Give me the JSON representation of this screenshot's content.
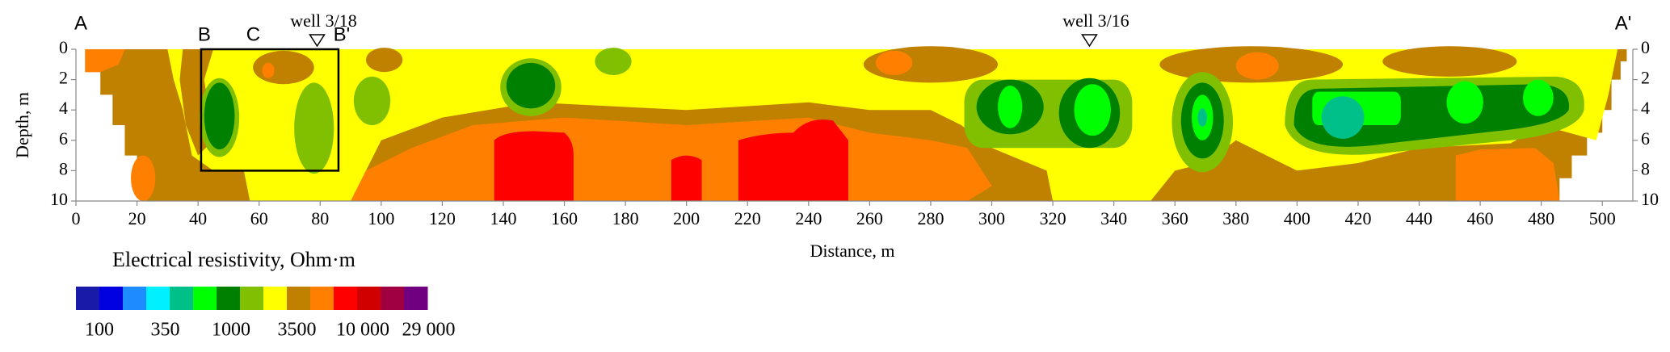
{
  "chart_data": {
    "type": "section",
    "xlabel": "Distance, m",
    "ylabel": "Depth, m",
    "xlim": [
      0,
      510
    ],
    "ylim": [
      0,
      10
    ],
    "xticks": [
      0,
      20,
      40,
      60,
      80,
      100,
      120,
      140,
      160,
      180,
      200,
      220,
      240,
      260,
      280,
      300,
      320,
      340,
      360,
      380,
      400,
      420,
      440,
      460,
      480,
      500
    ],
    "yticks": [
      0,
      2,
      4,
      6,
      8,
      10
    ],
    "profile_ends": [
      {
        "text": "A",
        "x": 0
      },
      {
        "text": "A'",
        "x": 510
      }
    ],
    "points": [
      {
        "text": "B",
        "x": 41
      },
      {
        "text": "C",
        "x": 57
      },
      {
        "text": "B'",
        "x": 86
      }
    ],
    "wells": [
      {
        "name": "well 3/18",
        "x": 79
      },
      {
        "name": "well 3/16",
        "x": 332
      }
    ],
    "highlight_box": {
      "xlim": [
        41,
        86
      ],
      "ylim": [
        0,
        8
      ]
    },
    "colorbar": {
      "title": "Electrical resistivity, Ohm·m",
      "colors": [
        "#1a1aa8",
        "#0000e0",
        "#1e8cff",
        "#00f0ff",
        "#00c08a",
        "#00ff00",
        "#008000",
        "#80c000",
        "#ffff00",
        "#c08000",
        "#ff8000",
        "#ff0000",
        "#d00000",
        "#a00040",
        "#700080"
      ],
      "ticks": [
        100,
        350,
        1000,
        3500,
        {
          "value": 10000,
          "label": "10 000"
        },
        {
          "value": 29000,
          "label": "29 000"
        }
      ]
    }
  }
}
